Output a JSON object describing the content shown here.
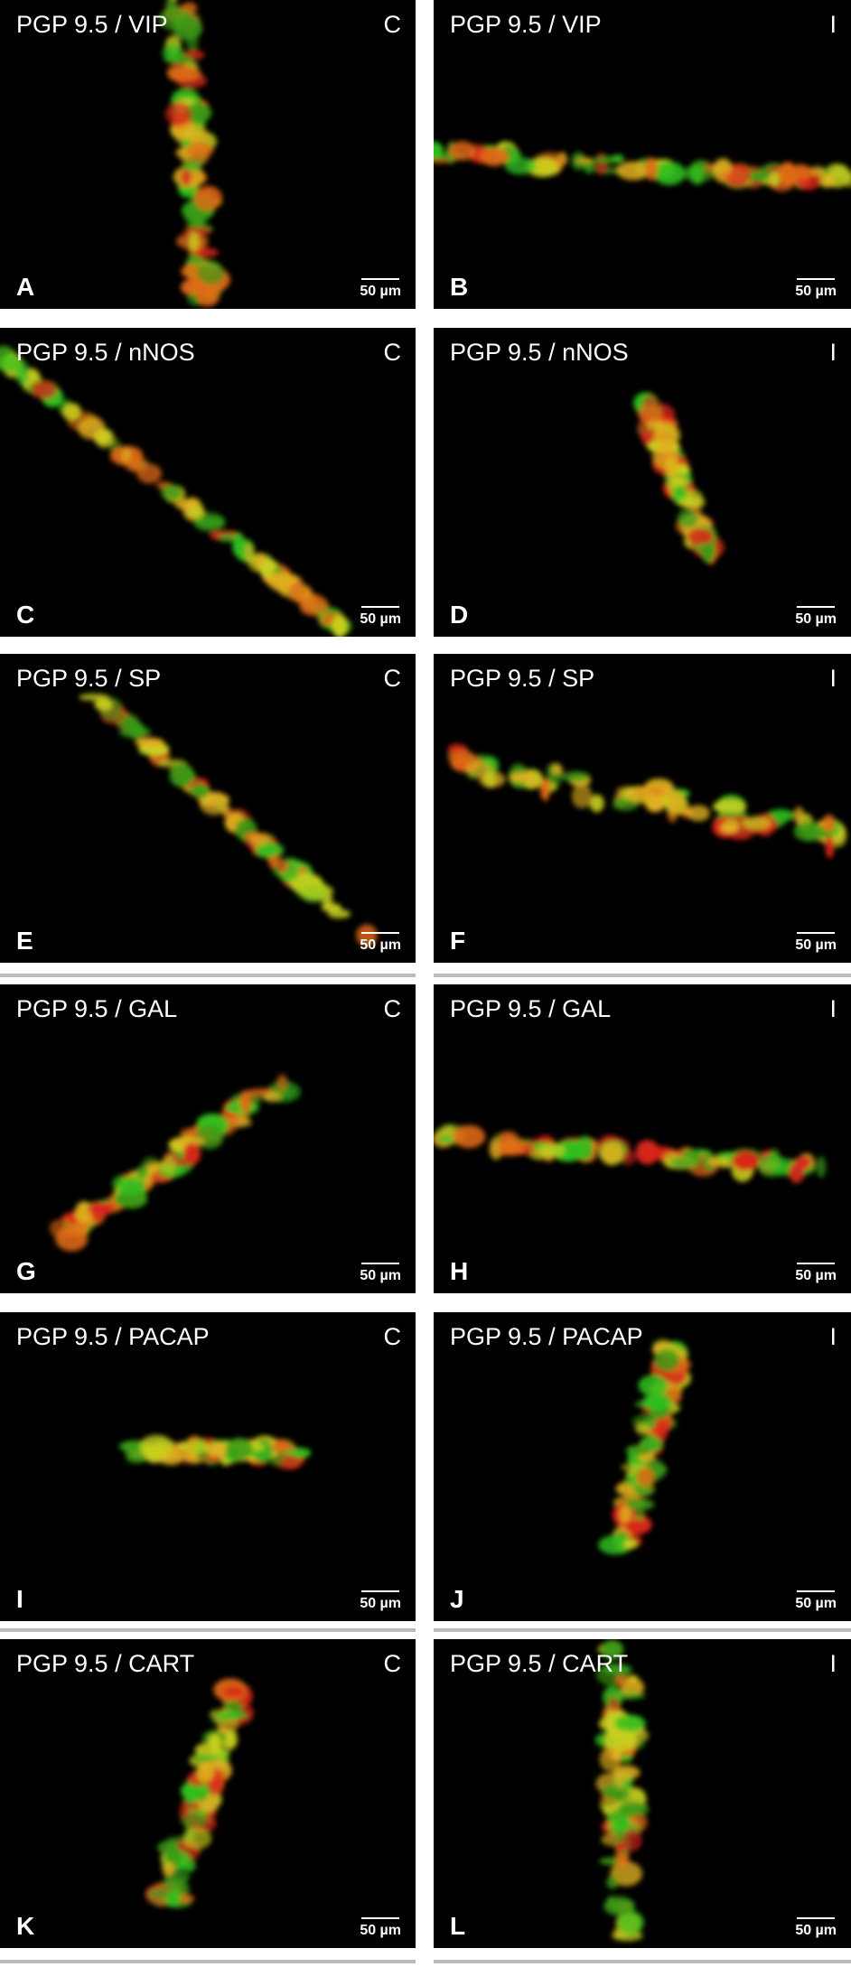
{
  "panels": [
    {
      "title": "PGP 9.5 / VIP",
      "side": "C",
      "label": "A",
      "scale": "50 µm"
    },
    {
      "title": "PGP 9.5 / VIP",
      "side": "I",
      "label": "B",
      "scale": "50 µm"
    },
    {
      "title": "PGP 9.5 / nNOS",
      "side": "C",
      "label": "C",
      "scale": "50 µm"
    },
    {
      "title": "PGP 9.5 / nNOS",
      "side": "I",
      "label": "D",
      "scale": "50 µm"
    },
    {
      "title": "PGP 9.5 / SP",
      "side": "C",
      "label": "E",
      "scale": "50 µm"
    },
    {
      "title": "PGP 9.5 / SP",
      "side": "I",
      "label": "F",
      "scale": "50 µm"
    },
    {
      "title": "PGP 9.5 / GAL",
      "side": "C",
      "label": "G",
      "scale": "50 µm"
    },
    {
      "title": "PGP 9.5 / GAL",
      "side": "I",
      "label": "H",
      "scale": "50 µm"
    },
    {
      "title": "PGP 9.5 / PACAP",
      "side": "C",
      "label": "I",
      "scale": "50 µm"
    },
    {
      "title": "PGP 9.5 / PACAP",
      "side": "I",
      "label": "J",
      "scale": "50 µm"
    },
    {
      "title": "PGP 9.5 / CART",
      "side": "C",
      "label": "K",
      "scale": "50 µm"
    },
    {
      "title": "PGP 9.5 / CART",
      "side": "I",
      "label": "L",
      "scale": "50 µm"
    }
  ]
}
